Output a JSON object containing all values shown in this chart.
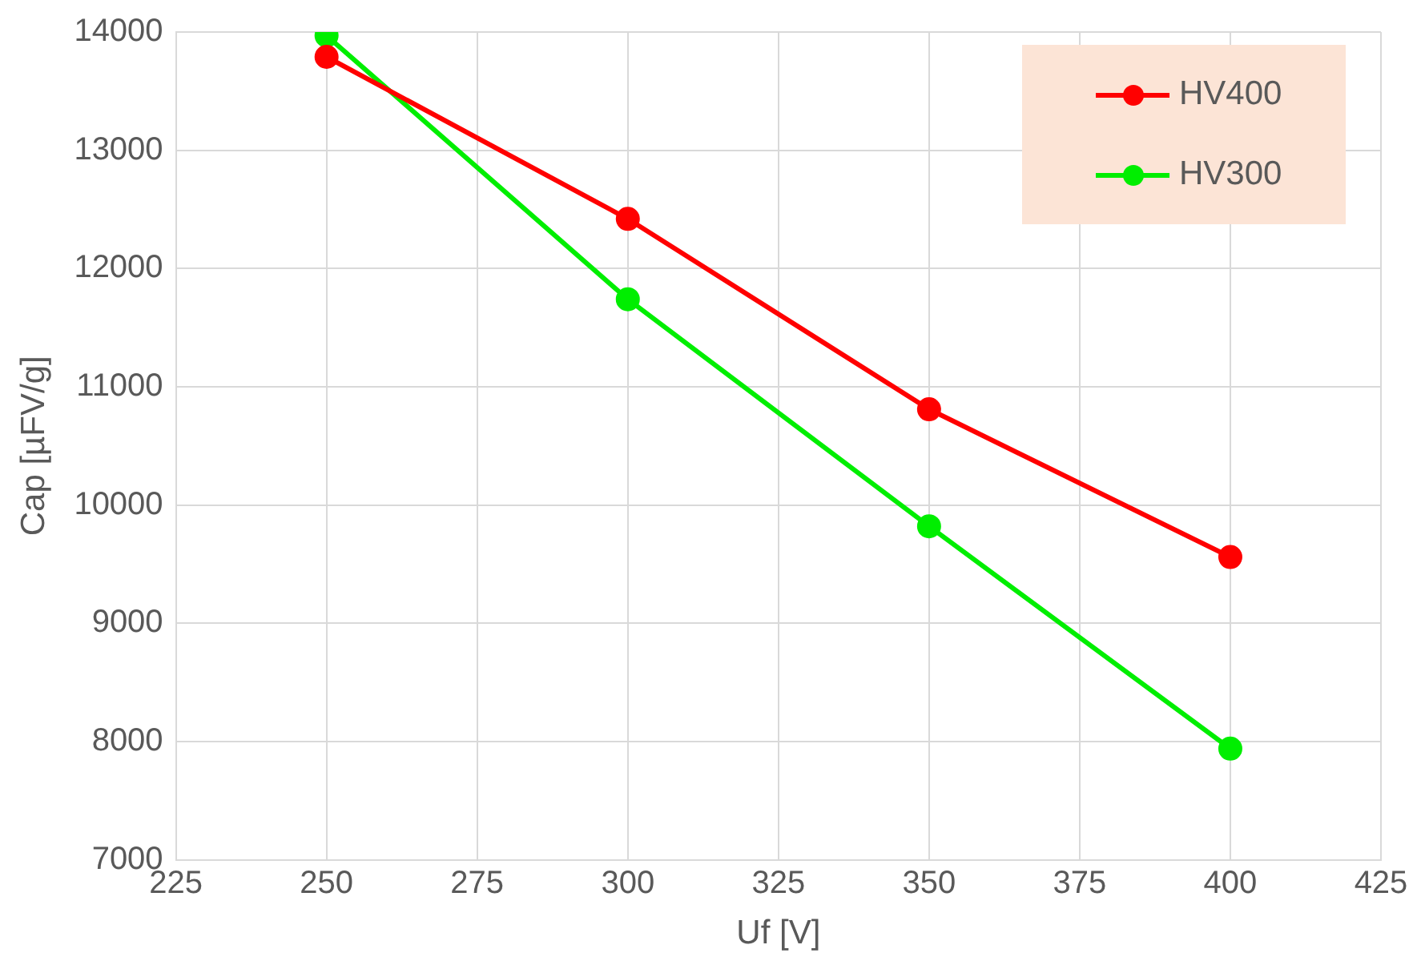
{
  "chart_data": {
    "type": "line",
    "xlabel": "Uf [V]",
    "ylabel": "Cap [µFV/g]",
    "x": [
      250,
      300,
      350,
      400
    ],
    "series": [
      {
        "name": "HV400",
        "color": "#ff0000",
        "values": [
          13790,
          12420,
          10810,
          9560
        ]
      },
      {
        "name": "HV300",
        "color": "#00ee00",
        "values": [
          13970,
          11740,
          9820,
          7940
        ]
      }
    ],
    "xlim": [
      225,
      425
    ],
    "xticks": [
      225,
      250,
      275,
      300,
      325,
      350,
      375,
      400,
      425
    ],
    "ylim": [
      7000,
      14000
    ],
    "yticks": [
      7000,
      8000,
      9000,
      10000,
      11000,
      12000,
      13000,
      14000
    ],
    "grid": true,
    "legend": "top right",
    "marker": "circle",
    "line_style": "solid"
  }
}
